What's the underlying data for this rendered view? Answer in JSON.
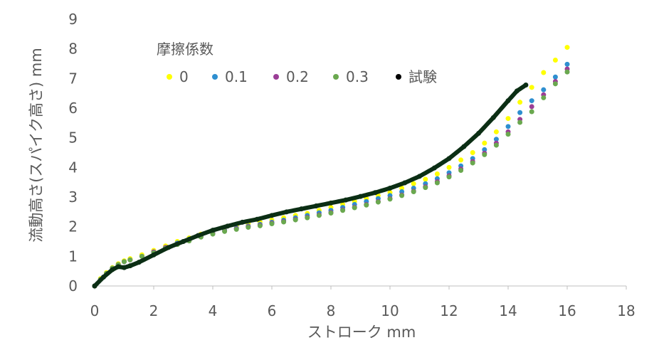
{
  "chart_data": {
    "type": "scatter",
    "xlabel": "ストローク mm",
    "ylabel": "流動高さ(スパイク高さ) mm",
    "xlim": [
      0,
      18
    ],
    "ylim": [
      0,
      9
    ],
    "xticks": [
      "0",
      "2",
      "4",
      "6",
      "8",
      "10",
      "12",
      "14",
      "16",
      "18"
    ],
    "yticks": [
      "0",
      "1",
      "2",
      "3",
      "4",
      "5",
      "6",
      "7",
      "8",
      "9"
    ],
    "grid": false,
    "legend": {
      "title": "摩擦係数",
      "placement": "top-left"
    },
    "series": [
      {
        "name": "0",
        "color": "#FFFF00",
        "x": [
          0,
          0.2,
          0.4,
          0.6,
          0.8,
          1.0,
          1.2,
          1.6,
          2.0,
          2.4,
          2.8,
          3.2,
          3.6,
          4.0,
          4.4,
          4.8,
          5.2,
          5.6,
          6.0,
          6.4,
          6.8,
          7.2,
          7.6,
          8.0,
          8.4,
          8.8,
          9.2,
          9.6,
          10.0,
          10.4,
          10.8,
          11.2,
          11.6,
          12.0,
          12.4,
          12.8,
          13.2,
          13.6,
          14.0,
          14.4,
          14.8,
          15.2,
          15.6,
          16.0
        ],
        "y": [
          0,
          0.25,
          0.45,
          0.62,
          0.75,
          0.85,
          0.92,
          1.05,
          1.2,
          1.35,
          1.5,
          1.62,
          1.75,
          1.85,
          1.95,
          2.02,
          2.1,
          2.15,
          2.22,
          2.3,
          2.38,
          2.45,
          2.55,
          2.65,
          2.75,
          2.85,
          2.95,
          3.05,
          3.15,
          3.3,
          3.45,
          3.6,
          3.78,
          4.0,
          4.25,
          4.5,
          4.82,
          5.2,
          5.65,
          6.2,
          6.7,
          7.2,
          7.62,
          8.05
        ]
      },
      {
        "name": "0.1",
        "color": "#2E8FD0",
        "x": [
          0,
          0.2,
          0.4,
          0.6,
          0.8,
          1.0,
          1.2,
          1.6,
          2.0,
          2.4,
          2.8,
          3.2,
          3.6,
          4.0,
          4.4,
          4.8,
          5.2,
          5.6,
          6.0,
          6.4,
          6.8,
          7.2,
          7.6,
          8.0,
          8.4,
          8.8,
          9.2,
          9.6,
          10.0,
          10.4,
          10.8,
          11.2,
          11.6,
          12.0,
          12.4,
          12.8,
          13.2,
          13.6,
          14.0,
          14.4,
          14.8,
          15.2,
          15.6,
          16.0
        ],
        "y": [
          0,
          0.22,
          0.42,
          0.6,
          0.72,
          0.82,
          0.88,
          1.0,
          1.15,
          1.3,
          1.45,
          1.58,
          1.7,
          1.8,
          1.88,
          1.95,
          2.02,
          2.08,
          2.15,
          2.22,
          2.3,
          2.38,
          2.47,
          2.55,
          2.65,
          2.75,
          2.85,
          2.95,
          3.05,
          3.18,
          3.3,
          3.45,
          3.62,
          3.82,
          4.05,
          4.3,
          4.6,
          4.95,
          5.38,
          5.85,
          6.25,
          6.62,
          7.05,
          7.48
        ]
      },
      {
        "name": "0.2",
        "color": "#9B3E96",
        "x": [
          0,
          0.2,
          0.4,
          0.6,
          0.8,
          1.0,
          1.2,
          1.6,
          2.0,
          2.4,
          2.8,
          3.2,
          3.6,
          4.0,
          4.4,
          4.8,
          5.2,
          5.6,
          6.0,
          6.4,
          6.8,
          7.2,
          7.6,
          8.0,
          8.4,
          8.8,
          9.2,
          9.6,
          10.0,
          10.4,
          10.8,
          11.2,
          11.6,
          12.0,
          12.4,
          12.8,
          13.2,
          13.6,
          14.0,
          14.4,
          14.8,
          15.2,
          15.6,
          16.0
        ],
        "y": [
          0,
          0.22,
          0.42,
          0.6,
          0.72,
          0.82,
          0.88,
          1.0,
          1.15,
          1.3,
          1.42,
          1.55,
          1.68,
          1.78,
          1.86,
          1.93,
          2.0,
          2.05,
          2.12,
          2.18,
          2.25,
          2.32,
          2.4,
          2.48,
          2.57,
          2.66,
          2.75,
          2.85,
          2.95,
          3.07,
          3.2,
          3.35,
          3.52,
          3.72,
          3.95,
          4.2,
          4.48,
          4.82,
          5.2,
          5.62,
          6.05,
          6.45,
          6.9,
          7.32
        ]
      },
      {
        "name": "0.3",
        "color": "#6AA84F",
        "x": [
          0,
          0.2,
          0.4,
          0.6,
          0.8,
          1.0,
          1.2,
          1.6,
          2.0,
          2.4,
          2.8,
          3.2,
          3.6,
          4.0,
          4.4,
          4.8,
          5.2,
          5.6,
          6.0,
          6.4,
          6.8,
          7.2,
          7.6,
          8.0,
          8.4,
          8.8,
          9.2,
          9.6,
          10.0,
          10.4,
          10.8,
          11.2,
          11.6,
          12.0,
          12.4,
          12.8,
          13.2,
          13.6,
          14.0,
          14.4,
          14.8,
          15.2,
          15.6,
          16.0
        ],
        "y": [
          0,
          0.22,
          0.42,
          0.6,
          0.72,
          0.82,
          0.88,
          1.0,
          1.12,
          1.27,
          1.4,
          1.52,
          1.65,
          1.75,
          1.84,
          1.91,
          1.98,
          2.03,
          2.1,
          2.16,
          2.23,
          2.3,
          2.38,
          2.46,
          2.55,
          2.64,
          2.73,
          2.83,
          2.93,
          3.05,
          3.18,
          3.32,
          3.48,
          3.68,
          3.9,
          4.15,
          4.43,
          4.75,
          5.12,
          5.52,
          5.88,
          6.35,
          6.82,
          7.22
        ]
      },
      {
        "name": "試験",
        "color": "#000000",
        "x": [
          0,
          0.3,
          0.6,
          0.8,
          1.0,
          1.2,
          1.5,
          2.0,
          2.5,
          3.0,
          3.5,
          4.0,
          4.5,
          5.0,
          5.5,
          6.0,
          6.5,
          7.0,
          7.5,
          8.0,
          8.5,
          9.0,
          9.5,
          10.0,
          10.5,
          11.0,
          11.5,
          12.0,
          12.5,
          13.0,
          13.5,
          14.0,
          14.3,
          14.6
        ],
        "y": [
          0,
          0.3,
          0.55,
          0.65,
          0.62,
          0.68,
          0.8,
          1.05,
          1.3,
          1.5,
          1.7,
          1.88,
          2.02,
          2.15,
          2.25,
          2.38,
          2.5,
          2.6,
          2.7,
          2.8,
          2.9,
          3.02,
          3.15,
          3.3,
          3.48,
          3.7,
          3.98,
          4.3,
          4.7,
          5.15,
          5.68,
          6.25,
          6.58,
          6.78
        ]
      }
    ]
  }
}
